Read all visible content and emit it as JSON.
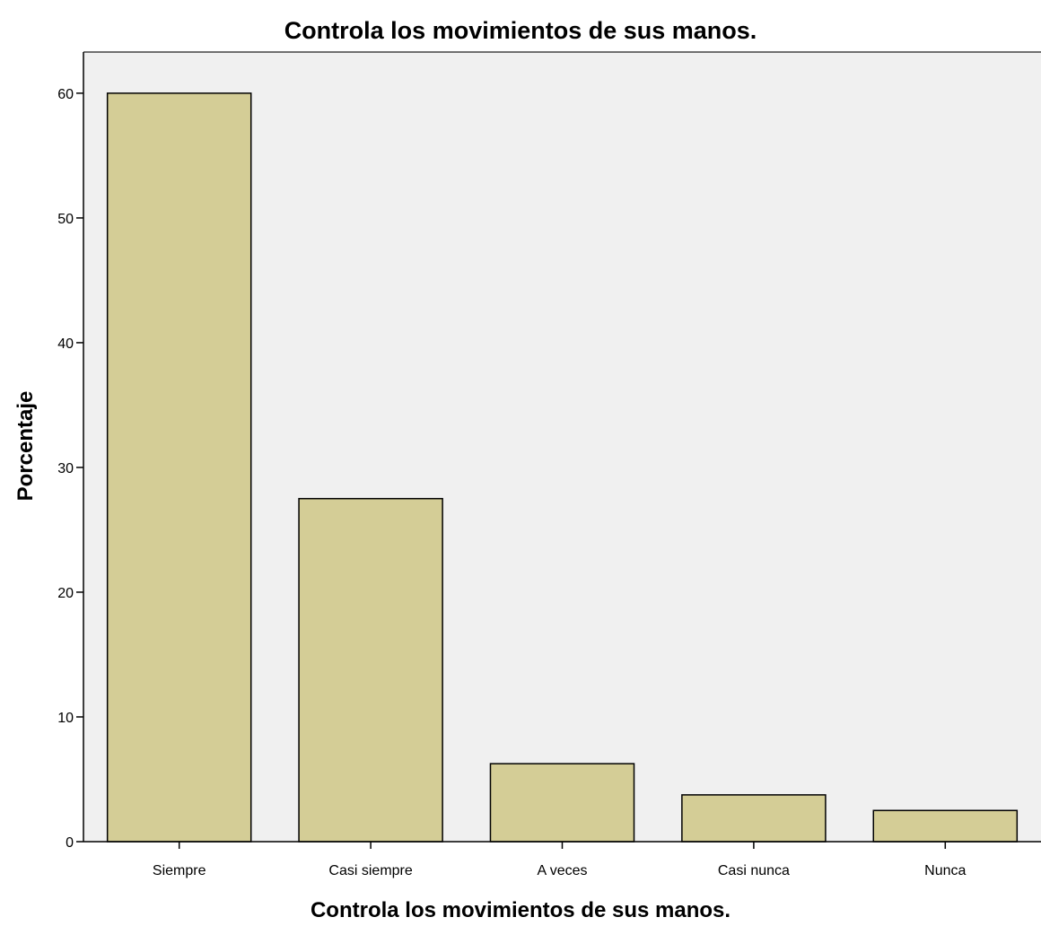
{
  "chart_data": {
    "type": "bar",
    "title": "Controla los movimientos de sus manos.",
    "xlabel": "Controla los movimientos de sus manos.",
    "ylabel": "Porcentaje",
    "categories": [
      "Siempre",
      "Casi siempre",
      "A veces",
      "Casi nunca",
      "Nunca"
    ],
    "values": [
      60.0,
      27.5,
      6.25,
      3.75,
      2.5
    ],
    "ylim": [
      0,
      63.3
    ],
    "yticks": [
      0,
      10,
      20,
      30,
      40,
      50,
      60
    ],
    "grid": false,
    "legend": "none",
    "colors": {
      "bar_fill": "#d4cd96",
      "plot_background": "#f0f0f0",
      "page_background": "#ffffff",
      "axis": "#000000"
    }
  }
}
